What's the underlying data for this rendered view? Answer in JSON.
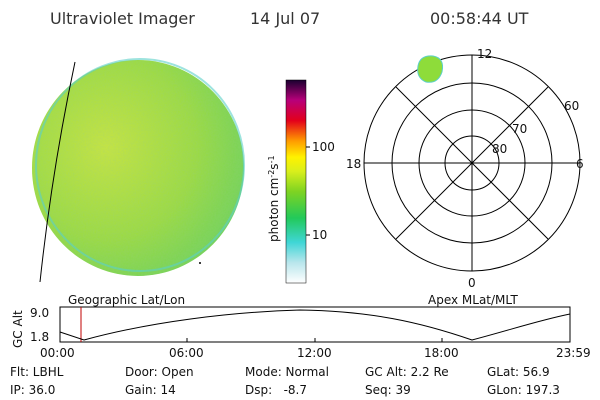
{
  "header": {
    "title": "Ultraviolet Imager",
    "date": "14 Jul 07",
    "time": "00:58:44 UT"
  },
  "colorbar": {
    "label": {
      "base": "photon cm",
      "exp1": "-2",
      "unit2": "s",
      "exp2": "-1"
    },
    "ticks": [
      "100",
      "10"
    ]
  },
  "polar": {
    "hours": [
      "12",
      "18",
      "6",
      "0"
    ],
    "latitudes": [
      "60",
      "70",
      "80"
    ]
  },
  "orbit": {
    "left_label": "Geographic Lat/Lon",
    "right_label": "Apex MLat/MLT",
    "axis_label": "GC Alt",
    "yticks": [
      "9.0",
      "1.8"
    ],
    "xticks": [
      "00:00",
      "06:00",
      "12:00",
      "18:00",
      "23:59"
    ]
  },
  "info": {
    "rows": [
      [
        "Flt: LBHL",
        "Door: Open",
        "Mode: Normal",
        "GC Alt: 2.2 Re",
        "GLat: 56.9"
      ],
      [
        "IP: 36.0",
        "Gain: 14",
        "Dsp:   -8.7",
        "Seq: 39",
        "GLon: 197.3"
      ]
    ]
  }
}
